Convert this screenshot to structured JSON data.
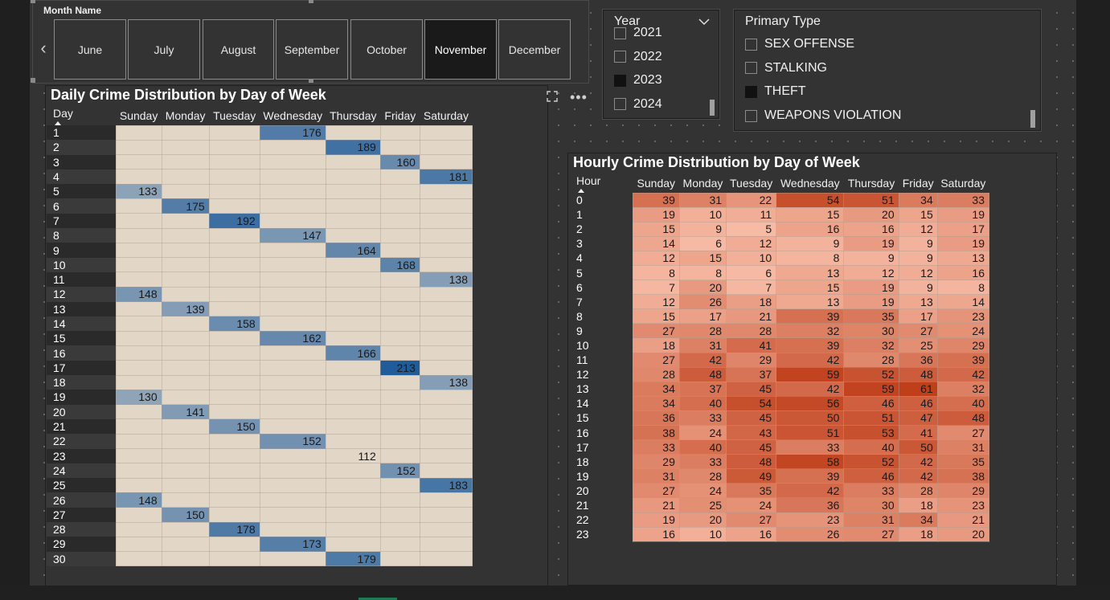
{
  "month_slicer": {
    "title": "Month Name",
    "months": [
      "June",
      "July",
      "August",
      "September",
      "October",
      "November",
      "December"
    ],
    "selected": "November"
  },
  "year_slicer": {
    "title": "Year",
    "items": [
      {
        "label": "2021",
        "checked": false
      },
      {
        "label": "2022",
        "checked": false
      },
      {
        "label": "2023",
        "checked": true
      },
      {
        "label": "2024",
        "checked": false
      }
    ]
  },
  "type_slicer": {
    "title": "Primary Type",
    "items": [
      {
        "label": "SEX OFFENSE",
        "checked": false
      },
      {
        "label": "STALKING",
        "checked": false
      },
      {
        "label": "THEFT",
        "checked": true
      },
      {
        "label": "WEAPONS VIOLATION",
        "checked": false
      }
    ]
  },
  "daily": {
    "title": "Daily Crime Distribution by Day of Week",
    "row_header": "Day",
    "columns": [
      "Sunday",
      "Monday",
      "Tuesday",
      "Wednesday",
      "Thursday",
      "Friday",
      "Saturday"
    ],
    "rows": [
      {
        "day": "1",
        "values": [
          "",
          "",
          "",
          "176",
          "",
          "",
          ""
        ]
      },
      {
        "day": "2",
        "values": [
          "",
          "",
          "",
          "",
          "189",
          "",
          ""
        ]
      },
      {
        "day": "3",
        "values": [
          "",
          "",
          "",
          "",
          "",
          "160",
          ""
        ]
      },
      {
        "day": "4",
        "values": [
          "",
          "",
          "",
          "",
          "",
          "",
          "181"
        ]
      },
      {
        "day": "5",
        "values": [
          "133",
          "",
          "",
          "",
          "",
          "",
          ""
        ]
      },
      {
        "day": "6",
        "values": [
          "",
          "175",
          "",
          "",
          "",
          "",
          ""
        ]
      },
      {
        "day": "7",
        "values": [
          "",
          "",
          "192",
          "",
          "",
          "",
          ""
        ]
      },
      {
        "day": "8",
        "values": [
          "",
          "",
          "",
          "147",
          "",
          "",
          ""
        ]
      },
      {
        "day": "9",
        "values": [
          "",
          "",
          "",
          "",
          "164",
          "",
          ""
        ]
      },
      {
        "day": "10",
        "values": [
          "",
          "",
          "",
          "",
          "",
          "168",
          ""
        ]
      },
      {
        "day": "11",
        "values": [
          "",
          "",
          "",
          "",
          "",
          "",
          "138"
        ]
      },
      {
        "day": "12",
        "values": [
          "148",
          "",
          "",
          "",
          "",
          "",
          ""
        ]
      },
      {
        "day": "13",
        "values": [
          "",
          "139",
          "",
          "",
          "",
          "",
          ""
        ]
      },
      {
        "day": "14",
        "values": [
          "",
          "",
          "158",
          "",
          "",
          "",
          ""
        ]
      },
      {
        "day": "15",
        "values": [
          "",
          "",
          "",
          "162",
          "",
          "",
          ""
        ]
      },
      {
        "day": "16",
        "values": [
          "",
          "",
          "",
          "",
          "166",
          "",
          ""
        ]
      },
      {
        "day": "17",
        "values": [
          "",
          "",
          "",
          "",
          "",
          "213",
          ""
        ]
      },
      {
        "day": "18",
        "values": [
          "",
          "",
          "",
          "",
          "",
          "",
          "138"
        ]
      },
      {
        "day": "19",
        "values": [
          "130",
          "",
          "",
          "",
          "",
          "",
          ""
        ]
      },
      {
        "day": "20",
        "values": [
          "",
          "141",
          "",
          "",
          "",
          "",
          ""
        ]
      },
      {
        "day": "21",
        "values": [
          "",
          "",
          "150",
          "",
          "",
          "",
          ""
        ]
      },
      {
        "day": "22",
        "values": [
          "",
          "",
          "",
          "152",
          "",
          "",
          ""
        ]
      },
      {
        "day": "23",
        "values": [
          "",
          "",
          "",
          "",
          "112",
          "",
          ""
        ]
      },
      {
        "day": "24",
        "values": [
          "",
          "",
          "",
          "",
          "",
          "152",
          ""
        ]
      },
      {
        "day": "25",
        "values": [
          "",
          "",
          "",
          "",
          "",
          "",
          "183"
        ]
      },
      {
        "day": "26",
        "values": [
          "148",
          "",
          "",
          "",
          "",
          "",
          ""
        ]
      },
      {
        "day": "27",
        "values": [
          "",
          "150",
          "",
          "",
          "",
          "",
          ""
        ]
      },
      {
        "day": "28",
        "values": [
          "",
          "",
          "178",
          "",
          "",
          "",
          ""
        ]
      },
      {
        "day": "29",
        "values": [
          "",
          "",
          "",
          "173",
          "",
          "",
          ""
        ]
      },
      {
        "day": "30",
        "values": [
          "",
          "",
          "",
          "",
          "179",
          "",
          ""
        ]
      }
    ],
    "color_scale": {
      "low": "#e2d6c6",
      "high": "#1f5c99",
      "min": 112,
      "max": 213
    }
  },
  "hourly": {
    "title": "Hourly Crime Distribution by Day of Week",
    "row_header": "Hour",
    "columns": [
      "Sunday",
      "Monday",
      "Tuesday",
      "Wednesday",
      "Thursday",
      "Friday",
      "Saturday"
    ],
    "rows": [
      {
        "hour": "0",
        "values": [
          39,
          31,
          22,
          54,
          51,
          34,
          33
        ]
      },
      {
        "hour": "1",
        "values": [
          19,
          10,
          11,
          15,
          20,
          15,
          19
        ]
      },
      {
        "hour": "2",
        "values": [
          15,
          9,
          5,
          16,
          16,
          12,
          17
        ]
      },
      {
        "hour": "3",
        "values": [
          14,
          6,
          12,
          9,
          19,
          9,
          19
        ]
      },
      {
        "hour": "4",
        "values": [
          12,
          15,
          10,
          8,
          9,
          9,
          13
        ]
      },
      {
        "hour": "5",
        "values": [
          8,
          8,
          6,
          13,
          12,
          12,
          16
        ]
      },
      {
        "hour": "6",
        "values": [
          7,
          20,
          7,
          15,
          19,
          9,
          8
        ]
      },
      {
        "hour": "7",
        "values": [
          12,
          26,
          18,
          13,
          19,
          13,
          14
        ]
      },
      {
        "hour": "8",
        "values": [
          15,
          17,
          21,
          39,
          35,
          17,
          23
        ]
      },
      {
        "hour": "9",
        "values": [
          27,
          28,
          28,
          32,
          30,
          27,
          24
        ]
      },
      {
        "hour": "10",
        "values": [
          18,
          31,
          41,
          39,
          32,
          25,
          29
        ]
      },
      {
        "hour": "11",
        "values": [
          27,
          42,
          29,
          42,
          28,
          36,
          39
        ]
      },
      {
        "hour": "12",
        "values": [
          28,
          48,
          37,
          59,
          52,
          48,
          42
        ]
      },
      {
        "hour": "13",
        "values": [
          34,
          37,
          45,
          42,
          59,
          61,
          32
        ]
      },
      {
        "hour": "14",
        "values": [
          34,
          40,
          54,
          56,
          46,
          46,
          40
        ]
      },
      {
        "hour": "15",
        "values": [
          36,
          33,
          45,
          50,
          51,
          47,
          48
        ]
      },
      {
        "hour": "16",
        "values": [
          38,
          24,
          43,
          51,
          53,
          41,
          27
        ]
      },
      {
        "hour": "17",
        "values": [
          33,
          40,
          45,
          33,
          40,
          50,
          31
        ]
      },
      {
        "hour": "18",
        "values": [
          29,
          33,
          48,
          58,
          52,
          42,
          35
        ]
      },
      {
        "hour": "19",
        "values": [
          31,
          28,
          49,
          39,
          46,
          42,
          38
        ]
      },
      {
        "hour": "20",
        "values": [
          27,
          24,
          35,
          42,
          33,
          28,
          29
        ]
      },
      {
        "hour": "21",
        "values": [
          21,
          25,
          24,
          36,
          30,
          18,
          23
        ]
      },
      {
        "hour": "22",
        "values": [
          19,
          20,
          27,
          23,
          31,
          34,
          21
        ]
      },
      {
        "hour": "23",
        "values": [
          16,
          10,
          16,
          26,
          27,
          18,
          20
        ]
      }
    ],
    "color_scale": {
      "low": "#f7bba5",
      "high": "#bf3f1b",
      "min": 5,
      "max": 61
    }
  },
  "icons": {
    "focus": "focus-mode-icon",
    "more": "more-options-icon",
    "dropdown": "chevron-down-icon",
    "prev": "chevron-left-icon"
  }
}
